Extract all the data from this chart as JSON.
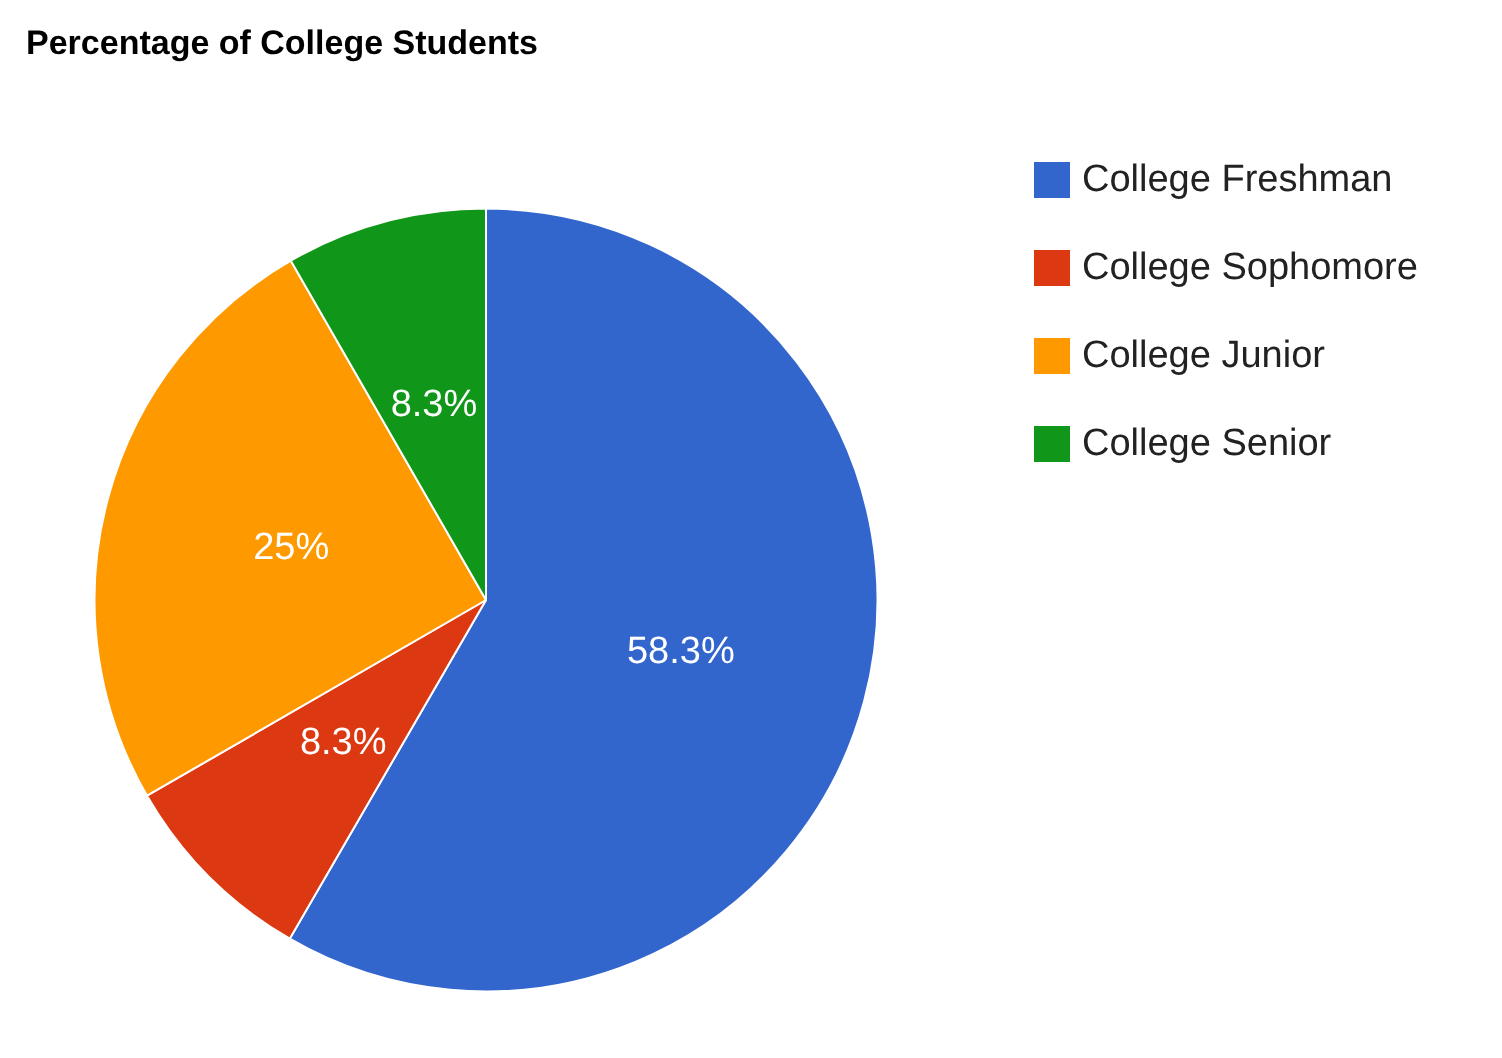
{
  "chart_data": {
    "type": "pie",
    "title": "Percentage of College Students",
    "categories": [
      "College Freshman",
      "College Sophomore",
      "College Junior",
      "College Senior"
    ],
    "values": [
      58.3,
      8.3,
      25,
      8.3
    ],
    "colors": [
      "#3366cc",
      "#dc3912",
      "#ff9900",
      "#109618"
    ],
    "value_labels": [
      "58.3%",
      "8.3%",
      "25%",
      "8.3%"
    ],
    "legend": "right"
  }
}
